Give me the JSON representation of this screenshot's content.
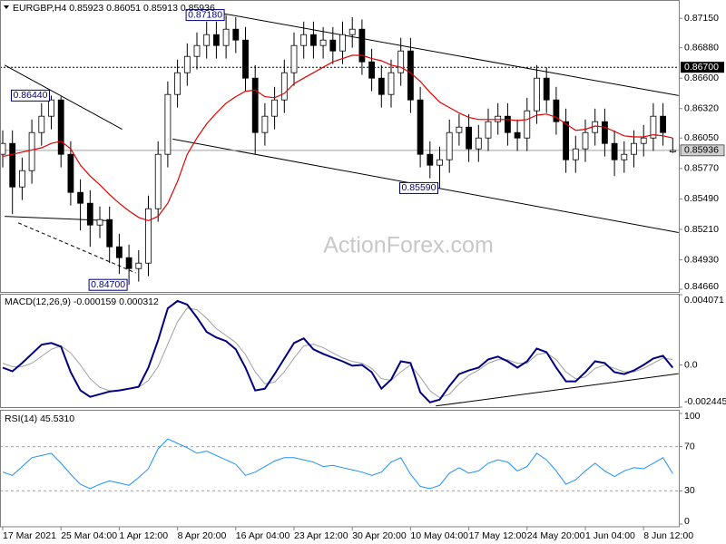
{
  "chart_data": {
    "type": "candlestick",
    "title": "EURGBP,H4  0.85923 0.86051 0.85913 0.85936",
    "watermark": "ActionForex.com",
    "categories": [
      "17 Mar 2021",
      null,
      null,
      null,
      null,
      null,
      "25 Mar 04:00",
      null,
      null,
      null,
      null,
      null,
      "1 Apr 12:00",
      null,
      null,
      null,
      null,
      null,
      "8 Apr 20:00",
      null,
      null,
      null,
      null,
      null,
      "16 Apr 04:00",
      null,
      null,
      null,
      null,
      null,
      "23 Apr 12:00",
      null,
      null,
      null,
      null,
      null,
      "30 Apr 20:00",
      null,
      null,
      null,
      null,
      null,
      "10 May 04:00",
      null,
      null,
      null,
      null,
      null,
      "17 May 12:00",
      null,
      null,
      null,
      null,
      null,
      "24 May 20:00",
      null,
      null,
      null,
      null,
      null,
      "1 Jun 04:00",
      null,
      null,
      null,
      null,
      null,
      "8 Jun 12:00",
      null,
      null,
      null
    ],
    "open": [
      0.859,
      0.86,
      0.856,
      0.8575,
      0.861,
      0.8625,
      0.864,
      0.859,
      0.8555,
      0.8545,
      0.8525,
      0.853,
      0.8505,
      0.8495,
      0.8485,
      0.849,
      0.854,
      0.859,
      0.8645,
      0.8665,
      0.868,
      0.869,
      0.87,
      0.869,
      0.8705,
      0.8695,
      0.866,
      0.861,
      0.8625,
      0.864,
      0.8665,
      0.869,
      0.87,
      0.869,
      0.8695,
      0.8685,
      0.87,
      0.8705,
      0.8675,
      0.866,
      0.8645,
      0.8665,
      0.8685,
      0.864,
      0.859,
      0.858,
      0.8585,
      0.861,
      0.8615,
      0.8595,
      0.8605,
      0.862,
      0.8625,
      0.861,
      0.8605,
      0.863,
      0.866,
      0.864,
      0.862,
      0.8585,
      0.8595,
      0.861,
      0.862,
      0.86,
      0.8585,
      0.859,
      0.86,
      0.8605,
      0.8625,
      0.85923
    ],
    "high": [
      0.8612,
      0.8612,
      0.8587,
      0.8622,
      0.8637,
      0.8644,
      0.8643,
      0.8602,
      0.8567,
      0.8557,
      0.8542,
      0.8542,
      0.8517,
      0.8507,
      0.8502,
      0.8552,
      0.8602,
      0.8657,
      0.8677,
      0.8692,
      0.8702,
      0.8712,
      0.8712,
      0.8718,
      0.8716,
      0.8707,
      0.8672,
      0.8637,
      0.8652,
      0.8677,
      0.8702,
      0.8712,
      0.8712,
      0.8707,
      0.8707,
      0.8712,
      0.8716,
      0.8714,
      0.8687,
      0.8672,
      0.8677,
      0.8697,
      0.8697,
      0.8652,
      0.8602,
      0.8597,
      0.8622,
      0.8627,
      0.8627,
      0.8617,
      0.8632,
      0.8637,
      0.8637,
      0.8622,
      0.8642,
      0.8672,
      0.867,
      0.8652,
      0.8632,
      0.8607,
      0.8622,
      0.8632,
      0.8632,
      0.8612,
      0.8602,
      0.8612,
      0.8617,
      0.8637,
      0.8637,
      0.86051
    ],
    "low": [
      0.8578,
      0.8535,
      0.8548,
      0.8563,
      0.8598,
      0.8613,
      0.8578,
      0.8543,
      0.852,
      0.8505,
      0.8513,
      0.849,
      0.848,
      0.847,
      0.8473,
      0.8478,
      0.8528,
      0.8578,
      0.8633,
      0.8653,
      0.8668,
      0.8678,
      0.8678,
      0.8678,
      0.8683,
      0.8648,
      0.859,
      0.8598,
      0.8613,
      0.8628,
      0.8653,
      0.8678,
      0.8678,
      0.8678,
      0.8673,
      0.8673,
      0.8688,
      0.8663,
      0.8648,
      0.8633,
      0.8633,
      0.8653,
      0.8628,
      0.8578,
      0.8568,
      0.8559,
      0.8573,
      0.8598,
      0.8583,
      0.8583,
      0.8593,
      0.8608,
      0.8598,
      0.8593,
      0.8593,
      0.8618,
      0.8628,
      0.8608,
      0.8573,
      0.8573,
      0.8583,
      0.8598,
      0.8588,
      0.857,
      0.8573,
      0.8578,
      0.8588,
      0.8593,
      0.8598,
      0.85913
    ],
    "close": [
      0.86,
      0.856,
      0.8575,
      0.861,
      0.8625,
      0.864,
      0.859,
      0.8555,
      0.8545,
      0.8525,
      0.853,
      0.8505,
      0.8495,
      0.8485,
      0.849,
      0.854,
      0.859,
      0.8645,
      0.8665,
      0.868,
      0.869,
      0.87,
      0.869,
      0.8705,
      0.8695,
      0.866,
      0.861,
      0.8625,
      0.864,
      0.8665,
      0.869,
      0.87,
      0.869,
      0.8695,
      0.8685,
      0.87,
      0.8705,
      0.8675,
      0.866,
      0.8645,
      0.8665,
      0.8685,
      0.864,
      0.859,
      0.858,
      0.8585,
      0.861,
      0.8615,
      0.8595,
      0.8605,
      0.862,
      0.8625,
      0.861,
      0.8605,
      0.863,
      0.866,
      0.864,
      0.862,
      0.8585,
      0.8595,
      0.861,
      0.862,
      0.86,
      0.8585,
      0.859,
      0.86,
      0.8605,
      0.8625,
      0.861,
      0.85936
    ],
    "ma": {
      "color": "#e00000",
      "values": [
        0.8588,
        0.859,
        0.8592,
        0.8594,
        0.8596,
        0.86,
        0.8602,
        0.8595,
        0.858,
        0.857,
        0.8562,
        0.8553,
        0.8545,
        0.8538,
        0.8532,
        0.8529,
        0.8533,
        0.8545,
        0.8565,
        0.859,
        0.8605,
        0.8618,
        0.8628,
        0.8637,
        0.8643,
        0.8648,
        0.8649,
        0.8643,
        0.8642,
        0.8646,
        0.8655,
        0.866,
        0.8665,
        0.867,
        0.8675,
        0.8678,
        0.8681,
        0.8681,
        0.8678,
        0.8676,
        0.8672,
        0.867,
        0.8665,
        0.8657,
        0.8647,
        0.8638,
        0.8633,
        0.8628,
        0.8624,
        0.8622,
        0.8622,
        0.8622,
        0.8622,
        0.8621,
        0.8622,
        0.8626,
        0.8627,
        0.8624,
        0.8618,
        0.8612,
        0.8613,
        0.8616,
        0.8615,
        0.8611,
        0.8607,
        0.8606,
        0.8606,
        0.8608,
        0.8607,
        0.8605
      ]
    },
    "ylim": [
      0.84635,
      0.8731
    ],
    "yticks": [
      {
        "value": 0.8715,
        "label": "0.87150"
      },
      {
        "value": 0.8688,
        "label": "0.86880"
      },
      {
        "value": 0.866,
        "label": "0.86600"
      },
      {
        "value": 0.8632,
        "label": "0.86320"
      },
      {
        "value": 0.8605,
        "label": "0.86050"
      },
      {
        "value": 0.8577,
        "label": "0.85770"
      },
      {
        "value": 0.8549,
        "label": "0.85490"
      },
      {
        "value": 0.8521,
        "label": "0.85210"
      },
      {
        "value": 0.8493,
        "label": "0.84930"
      },
      {
        "value": 0.8466,
        "label": "0.84660"
      }
    ],
    "hlines": [
      {
        "value": 0.867,
        "label": "0.86700"
      }
    ],
    "trendlines": [
      {
        "x": [
          21.7,
          69.6
        ],
        "y": [
          0.8721,
          0.8644
        ]
      },
      {
        "x": [
          17.5,
          69.6
        ],
        "y": [
          0.8604,
          0.85181
        ]
      },
      {
        "x": [
          0.2,
          12.3
        ],
        "y": [
          0.8672,
          0.8613
        ]
      },
      {
        "x": [
          0.2,
          10.9
        ],
        "y": [
          0.8533,
          0.8529
        ]
      },
      {
        "x": [
          1.6,
          13.7
        ],
        "y": [
          0.8527,
          0.8481
        ],
        "dashed": true
      }
    ],
    "annotations": [
      {
        "x": 23,
        "value": 0.8718,
        "label": "0.87180"
      },
      {
        "x": 5,
        "value": 0.8644,
        "label": "0.86440"
      },
      {
        "x": 45,
        "value": 0.8559,
        "label": "0.85590"
      },
      {
        "x": 13,
        "value": 0.847,
        "label": "0.84700"
      }
    ],
    "indicators": [
      {
        "type": "macd",
        "title": "MACD(12,26,9) -0.000159 0.000312",
        "ylim": [
          -0.002445,
          0.004071
        ],
        "yticks": [
          0.004071,
          {
            "value": 0,
            "label": "0.0"
          },
          -0.002445
        ],
        "series": [
          {
            "color": "#000080",
            "values": [
              -0.00016,
              -0.00037,
              0.00011,
              0.00064,
              0.00117,
              0.00127,
              0.00106,
              -0.00042,
              -0.00148,
              -0.00185,
              -0.0017,
              -0.00154,
              -0.00148,
              -0.00138,
              -0.00127,
              -0.00016,
              0.00143,
              0.00328,
              0.00371,
              0.0035,
              0.00275,
              0.00191,
              0.00159,
              0.00138,
              0.0009,
              -0.00016,
              -0.00148,
              -0.00138,
              -0.00053,
              0.00037,
              0.00127,
              0.00154,
              0.0009,
              0.00064,
              0.00042,
              0.00021,
              -5e-05,
              0.0,
              -0.00042,
              -0.00138,
              -0.00085,
              0.00021,
              0.00011,
              -0.00159,
              -0.00217,
              -0.00201,
              -0.00122,
              -0.00053,
              -0.00032,
              -0.00016,
              0.00032,
              0.00048,
              0.00021,
              -0.00016,
              0.00021,
              0.00095,
              0.00074,
              -0.00016,
              -0.00095,
              -0.00095,
              -0.00042,
              0.00021,
              0.00011,
              -0.00042,
              -0.00053,
              -0.00032,
              0.0,
              0.00037,
              0.00053,
              -0.000159
            ]
          },
          {
            "color": "#a0a0a0",
            "values": [
              0.0001,
              -0.0001,
              -0.0001,
              0.0001,
              0.0005,
              0.0009,
              0.0011,
              0.0007,
              0.0,
              -0.0008,
              -0.0013,
              -0.0015,
              -0.0015,
              -0.0014,
              -0.0013,
              -0.0009,
              -0.0001,
              0.0012,
              0.0025,
              0.0033,
              0.0032,
              0.0027,
              0.0021,
              0.0017,
              0.0013,
              0.0006,
              -0.0004,
              -0.0011,
              -0.001,
              -0.0004,
              0.0004,
              0.0011,
              0.0012,
              0.001,
              0.0007,
              0.0004,
              0.0002,
              0.0001,
              -0.0002,
              -0.0008,
              -0.0009,
              -0.0004,
              0.0,
              -0.0007,
              -0.0015,
              -0.0019,
              -0.0017,
              -0.0011,
              -0.0006,
              -0.0003,
              0.0001,
              0.0003,
              0.0003,
              0.0001,
              0.0001,
              0.0006,
              0.0007,
              0.0003,
              -0.0004,
              -0.0008,
              -0.0007,
              -0.0002,
              0.0,
              -0.0002,
              -0.0004,
              -0.0004,
              -0.0002,
              0.0001,
              0.0004,
              0.000312
            ]
          }
        ],
        "trendlines": [
          {
            "x": [
              44.6,
              69.6
            ],
            "y": [
              -0.00238,
              -0.00051
            ]
          }
        ]
      },
      {
        "type": "rsi",
        "title": "RSI(14) 45.5310",
        "ylim": [
          -2.5,
          102.5
        ],
        "yticks": [
          100,
          70,
          30,
          0
        ],
        "levels": [
          70,
          30
        ],
        "series": [
          {
            "color": "#1e90ff",
            "values": [
              47,
              44,
              52,
              60,
              62,
              64,
              55,
              45,
              36,
              32,
              36,
              39,
              37,
              35,
              42,
              50,
              68,
              77,
              73,
              69,
              64,
              66,
              62,
              58,
              54,
              44,
              47,
              52,
              57,
              60,
              60,
              58,
              56,
              52,
              53,
              51,
              49,
              47,
              44,
              47,
              56,
              60,
              45,
              34,
              32,
              35,
              46,
              51,
              46,
              48,
              55,
              58,
              56,
              48,
              52,
              64,
              58,
              48,
              36,
              40,
              48,
              55,
              48,
              43,
              48,
              51,
              50,
              55,
              60,
              45.531
            ]
          }
        ]
      }
    ]
  }
}
